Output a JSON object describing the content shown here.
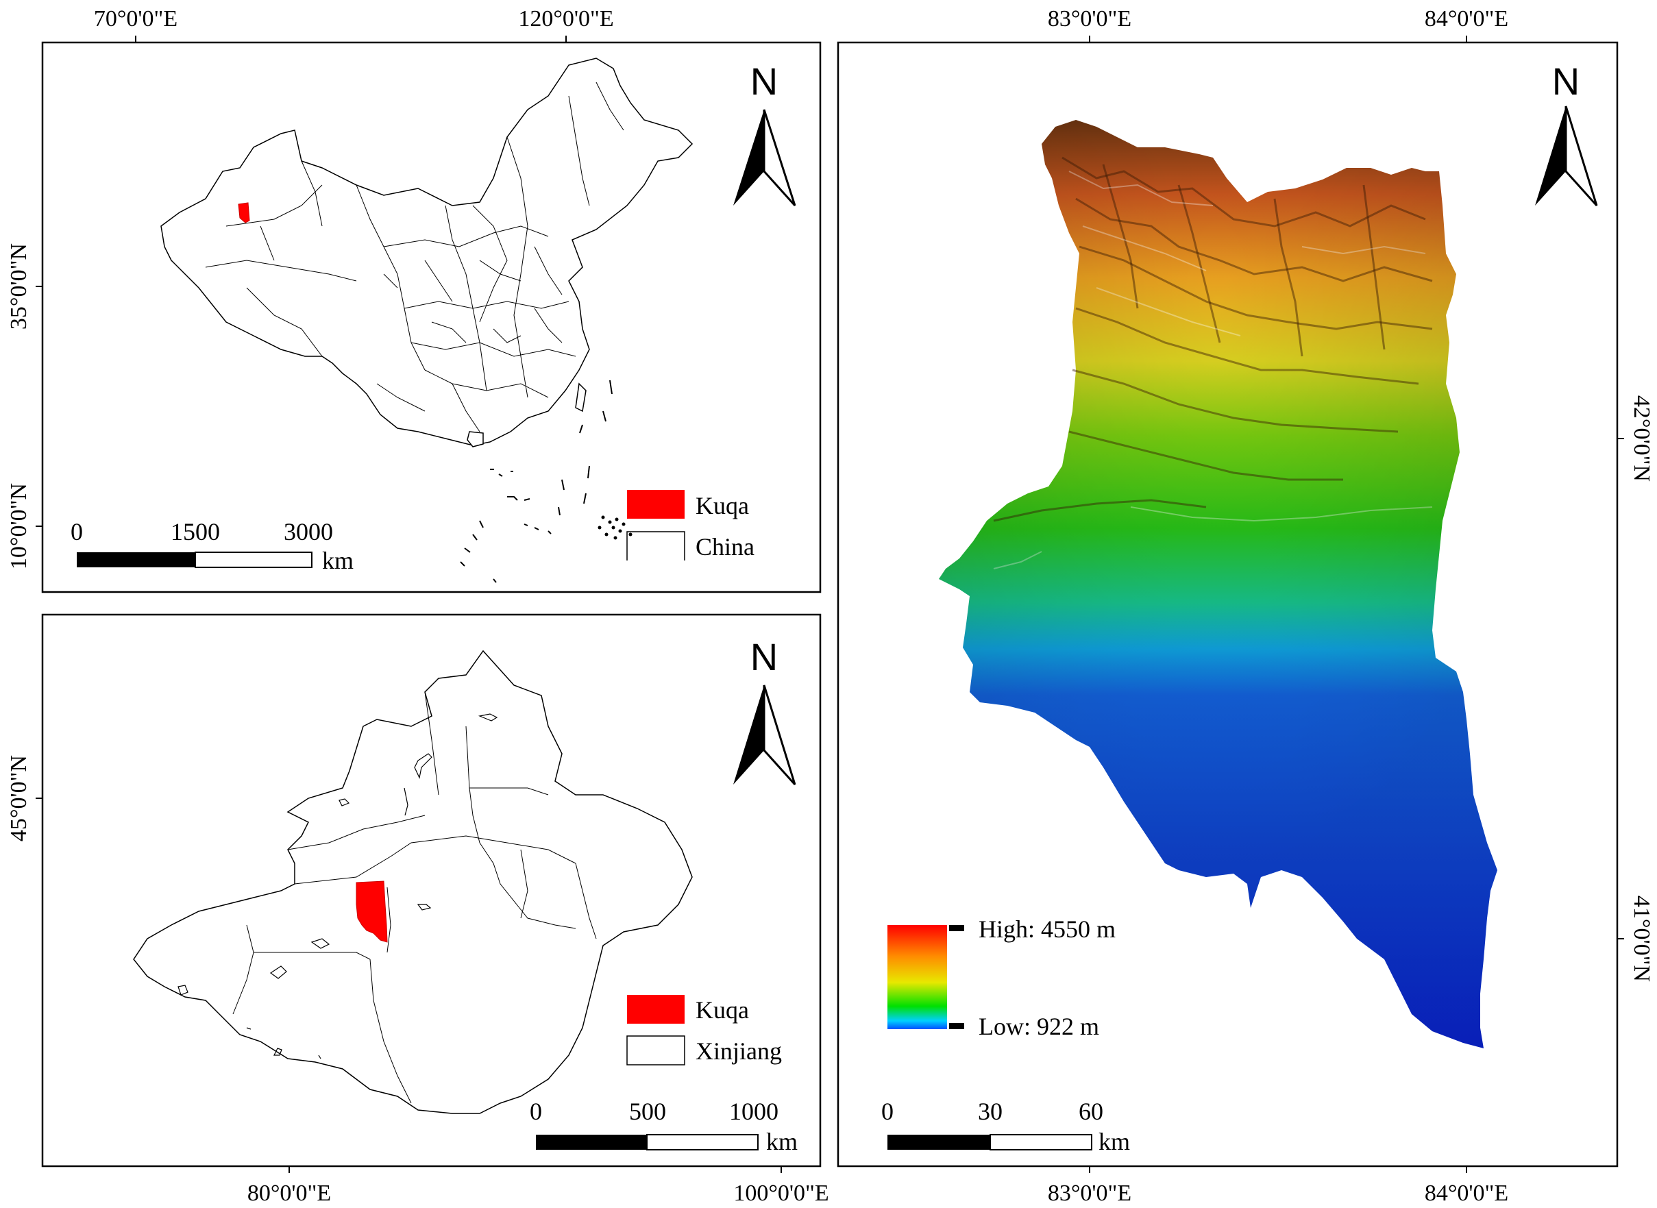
{
  "panel_china": {
    "coords_top": [
      "70°0'0\"E",
      "120°0'0\"E"
    ],
    "coords_left": [
      "35°0'0\"N",
      "10°0'0\"N"
    ],
    "north": "N",
    "scale": {
      "ticks": [
        "0",
        "1500",
        "3000"
      ],
      "unit": "km"
    },
    "legend": [
      {
        "label": "Kuqa",
        "color": "#ff0000"
      },
      {
        "label": "China",
        "color": "#ffffff"
      }
    ]
  },
  "panel_xinjiang": {
    "coords_bottom": [
      "80°0'0\"E",
      "100°0'0\"E"
    ],
    "coords_left": [
      "45°0'0\"N"
    ],
    "north": "N",
    "scale": {
      "ticks": [
        "0",
        "500",
        "1000"
      ],
      "unit": "km"
    },
    "legend": [
      {
        "label": "Kuqa",
        "color": "#ff0000"
      },
      {
        "label": "Xinjiang",
        "color": "#ffffff"
      }
    ]
  },
  "panel_kuqa": {
    "coords_top": [
      "83°0'0\"E",
      "84°0'0\"E"
    ],
    "coords_bottom": [
      "83°0'0\"E",
      "84°0'0\"E"
    ],
    "coords_right": [
      "42°0'0\"N",
      "41°0'0\"N"
    ],
    "north": "N",
    "elevation_legend": {
      "high": "High: 4550 m",
      "low": "Low: 922 m"
    },
    "scale": {
      "ticks": [
        "0",
        "30",
        "60"
      ],
      "unit": "km"
    }
  }
}
